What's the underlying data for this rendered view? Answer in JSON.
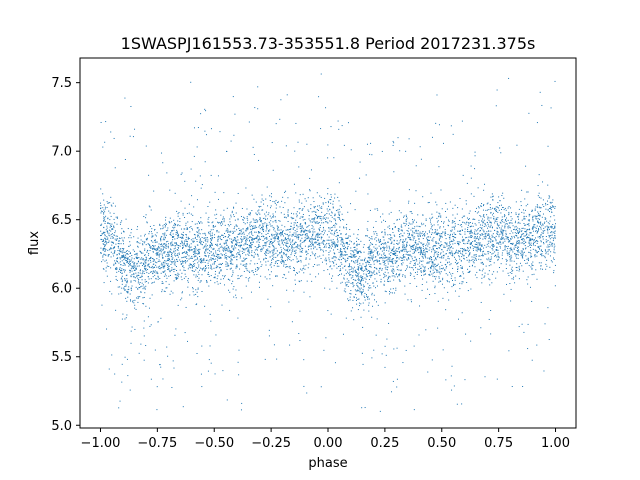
{
  "chart_data": {
    "type": "scatter",
    "title": "1SWASPJ161553.73-353551.8 Period 2017231.375s",
    "xlabel": "phase",
    "ylabel": "flux",
    "xlim": [
      -1.09,
      1.09
    ],
    "ylim": [
      4.98,
      7.68
    ],
    "x_ticks": [
      -1.0,
      -0.75,
      -0.5,
      -0.25,
      0.0,
      0.25,
      0.5,
      0.75,
      1.0
    ],
    "x_tick_labels": [
      "−1.00",
      "−0.75",
      "−0.50",
      "−0.25",
      "0.00",
      "0.25",
      "0.50",
      "0.75",
      "1.00"
    ],
    "y_ticks": [
      5.0,
      5.5,
      6.0,
      6.5,
      7.0,
      7.5
    ],
    "y_tick_labels": [
      "5.0",
      "5.5",
      "6.0",
      "6.5",
      "7.0",
      "7.5"
    ],
    "grid": false,
    "marker_color": "#1f77b4",
    "series": [
      {
        "points_generated": true,
        "x_range": [
          -1.0,
          1.0
        ],
        "n_points": 6000,
        "phase_profile": {
          "x": [
            0.0,
            0.05,
            0.1,
            0.15,
            0.2,
            0.25,
            0.3,
            0.35,
            0.4,
            0.45,
            0.5,
            0.55,
            0.6,
            0.65,
            0.7,
            0.75,
            0.8,
            0.85,
            0.9,
            0.95,
            1.0
          ],
          "y": [
            6.42,
            6.35,
            6.18,
            6.1,
            6.2,
            6.22,
            6.25,
            6.32,
            6.28,
            6.25,
            6.3,
            6.28,
            6.3,
            6.33,
            6.38,
            6.4,
            6.32,
            6.35,
            6.38,
            6.42,
            6.42
          ]
        },
        "spread": 0.14,
        "y_min": 5.1,
        "y_max": 7.57
      }
    ]
  }
}
